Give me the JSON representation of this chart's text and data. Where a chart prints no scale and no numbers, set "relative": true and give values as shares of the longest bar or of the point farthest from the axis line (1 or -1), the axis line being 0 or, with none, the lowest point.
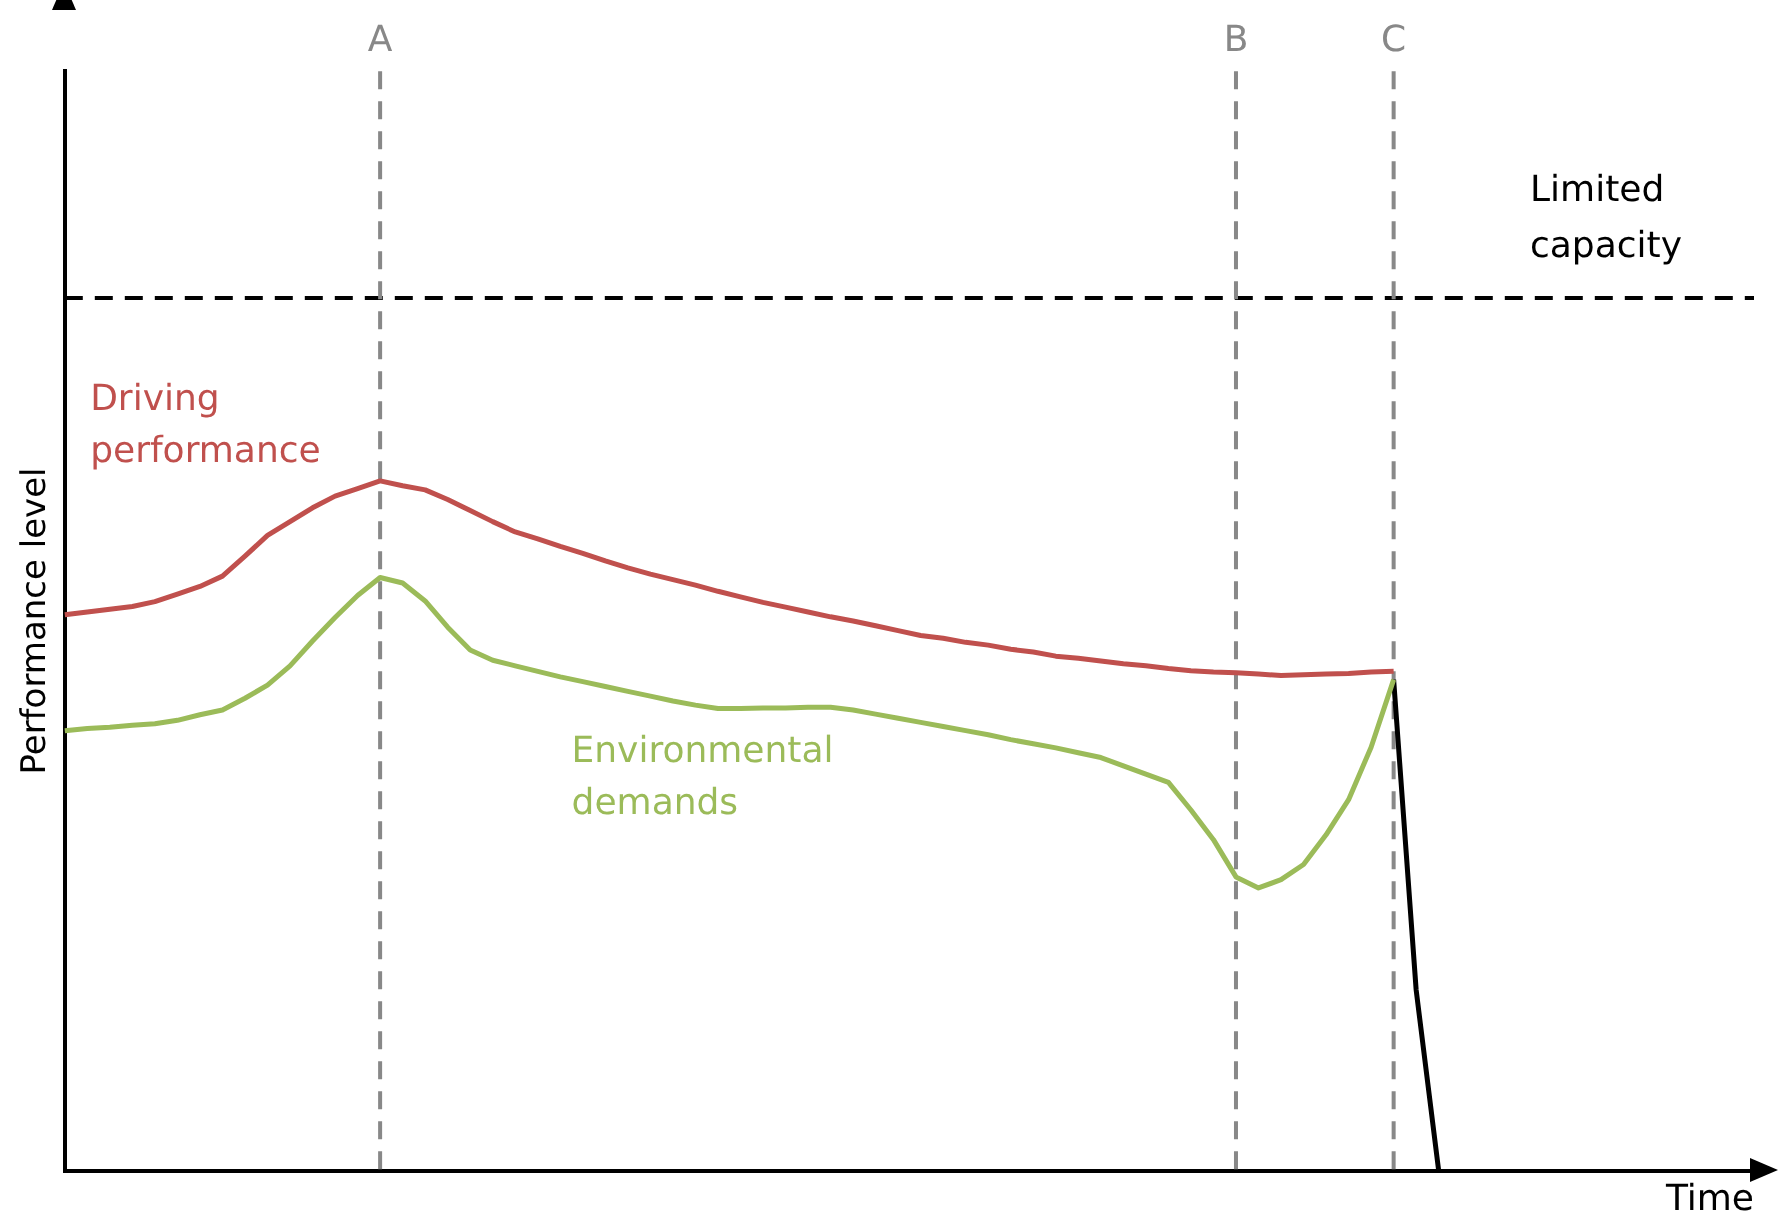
{
  "chart_data": {
    "type": "line",
    "relative": true,
    "xlabel": "Time",
    "ylabel": "Performance level",
    "tick_labels": "x",
    "grid": false,
    "legend": false,
    "marker": "none",
    "categories": [
      null,
      null,
      null,
      null,
      null,
      null,
      null,
      null,
      null,
      null,
      null,
      null,
      null,
      null,
      "A",
      null,
      null,
      null,
      null,
      null,
      null,
      null,
      null,
      null,
      null,
      null,
      null,
      null,
      null,
      null,
      null,
      null,
      null,
      null,
      null,
      null,
      null,
      null,
      null,
      null,
      null,
      null,
      null,
      null,
      null,
      null,
      null,
      null,
      null,
      null,
      null,
      null,
      "B",
      null,
      null,
      null,
      null,
      null,
      null,
      "C",
      null,
      null,
      null,
      null,
      null,
      null,
      null,
      null,
      null,
      null,
      null,
      null,
      null,
      null,
      null,
      null
    ],
    "series": [
      {
        "name": "Driving performance",
        "color": "#c0504d",
        "values": [
          0.806,
          0.81,
          0.814,
          0.818,
          0.825,
          0.836,
          0.847,
          0.862,
          0.891,
          0.921,
          0.941,
          0.961,
          0.978,
          0.989,
          1.0,
          0.993,
          0.987,
          0.973,
          0.957,
          0.941,
          0.926,
          0.916,
          0.905,
          0.895,
          0.884,
          0.874,
          0.865,
          0.857,
          0.849,
          0.84,
          0.832,
          0.824,
          0.817,
          0.81,
          0.803,
          0.797,
          0.79,
          0.783,
          0.776,
          0.772,
          0.766,
          0.762,
          0.756,
          0.752,
          0.746,
          0.743,
          0.739,
          0.735,
          0.732,
          0.728,
          0.725,
          0.723,
          0.722,
          0.72,
          0.718,
          0.719,
          0.72,
          0.721,
          0.723,
          0.724,
          null,
          null,
          null,
          null,
          null,
          null,
          null,
          null,
          null,
          null,
          null,
          null,
          null,
          null,
          null,
          null
        ]
      },
      {
        "name": "Environmental demands",
        "color": "#9bbb59",
        "values": [
          0.638,
          0.641,
          0.643,
          0.646,
          0.648,
          0.653,
          0.661,
          0.668,
          0.685,
          0.704,
          0.732,
          0.768,
          0.802,
          0.834,
          0.86,
          0.852,
          0.826,
          0.788,
          0.755,
          0.74,
          0.732,
          0.724,
          0.716,
          0.709,
          0.702,
          0.695,
          0.688,
          0.681,
          0.675,
          0.67,
          0.67,
          0.671,
          0.671,
          0.672,
          0.672,
          0.668,
          0.662,
          0.656,
          0.65,
          0.644,
          0.638,
          0.632,
          0.625,
          0.619,
          0.613,
          0.606,
          0.599,
          0.587,
          0.575,
          0.563,
          0.523,
          0.48,
          0.426,
          0.41,
          0.422,
          0.444,
          0.487,
          0.538,
          0.614,
          0.712,
          null,
          null,
          null,
          null,
          null,
          null,
          null,
          null,
          null,
          null,
          null,
          null,
          null,
          null,
          null,
          null
        ]
      },
      {
        "color": "#000000",
        "values": [
          null,
          null,
          null,
          null,
          null,
          null,
          null,
          null,
          null,
          null,
          null,
          null,
          null,
          null,
          null,
          null,
          null,
          null,
          null,
          null,
          null,
          null,
          null,
          null,
          null,
          null,
          null,
          null,
          null,
          null,
          null,
          null,
          null,
          null,
          null,
          null,
          null,
          null,
          null,
          null,
          null,
          null,
          null,
          null,
          null,
          null,
          null,
          null,
          null,
          null,
          null,
          null,
          null,
          null,
          null,
          null,
          null,
          null,
          null,
          0.712,
          0.262,
          0,
          null,
          null,
          null,
          null,
          null,
          null,
          null,
          null,
          null,
          null,
          null,
          null,
          null,
          null
        ]
      }
    ],
    "ref_lines": [
      {
        "axis": "y",
        "value": 1.265,
        "label": "Limited capacity",
        "color": "#000000",
        "line_style": "dashed"
      },
      {
        "axis": "x",
        "value": "A",
        "color": "#888888",
        "line_style": "dashed"
      },
      {
        "axis": "x",
        "value": "B",
        "color": "#888888",
        "line_style": "dashed"
      },
      {
        "axis": "x",
        "value": "C",
        "color": "#888888",
        "line_style": "dashed"
      }
    ]
  }
}
